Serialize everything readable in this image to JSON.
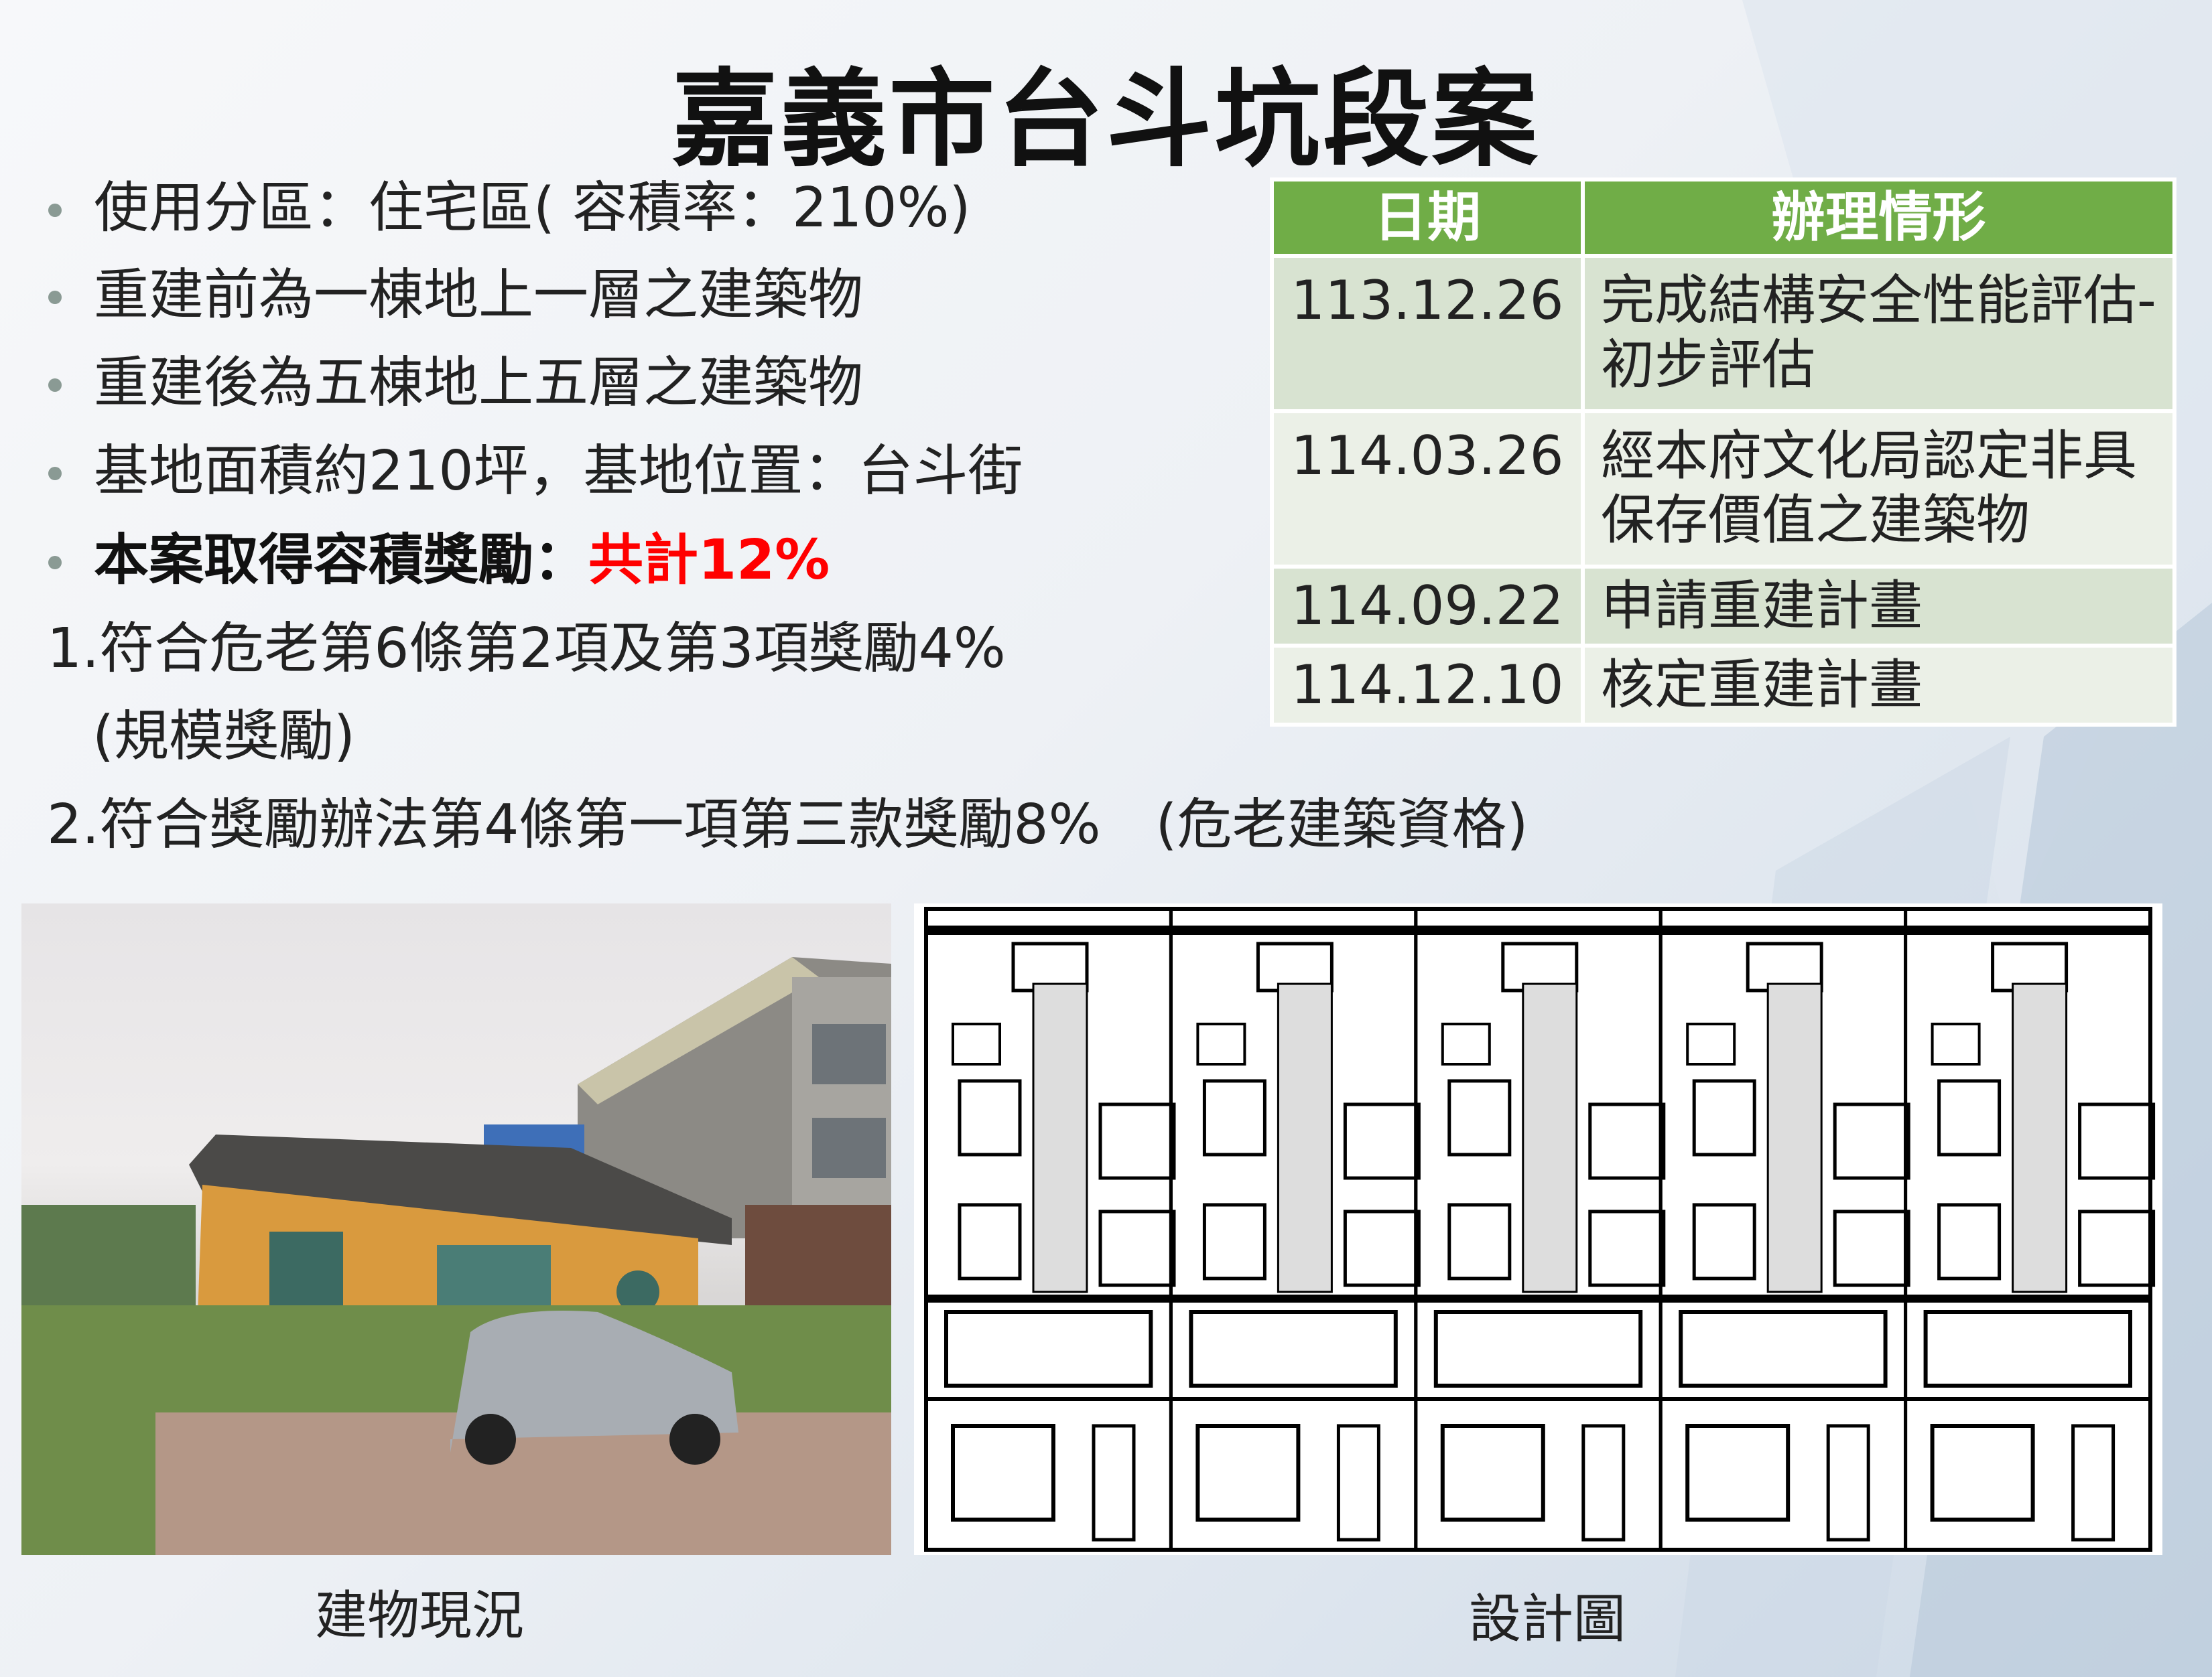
{
  "title": "嘉義市台斗坑段案",
  "bullets": [
    "使用分區：住宅區( 容積率：210%)",
    "重建前為一棟地上一層之建築物",
    "重建後為五棟地上五層之建築物",
    "基地面積約210坪，基地位置：台斗街"
  ],
  "bonus": {
    "label": "本案取得容積獎勵：",
    "total": "共計12%"
  },
  "items": [
    "1.符合危老第6條第2項及第3項獎勵4%",
    "(規模獎勵)",
    "2.符合獎勵辦法第4條第一項第三款獎勵8%　(危老建築資格)"
  ],
  "table": {
    "headers": [
      "日期",
      "辦理情形"
    ],
    "rows": [
      {
        "date": "113.12.26",
        "status": "完成結構安全性能評估-初步評估"
      },
      {
        "date": "114.03.26",
        "status": "經本府文化局認定非具保存價值之建築物"
      },
      {
        "date": "114.09.22",
        "status": "申請重建計畫"
      },
      {
        "date": "114.12.10",
        "status": "核定重建計畫"
      }
    ],
    "header_color": "#70ad47"
  },
  "captions": {
    "photo": "建物現況",
    "drawing": "設計圖"
  },
  "colors": {
    "highlight": "#ff0000"
  }
}
